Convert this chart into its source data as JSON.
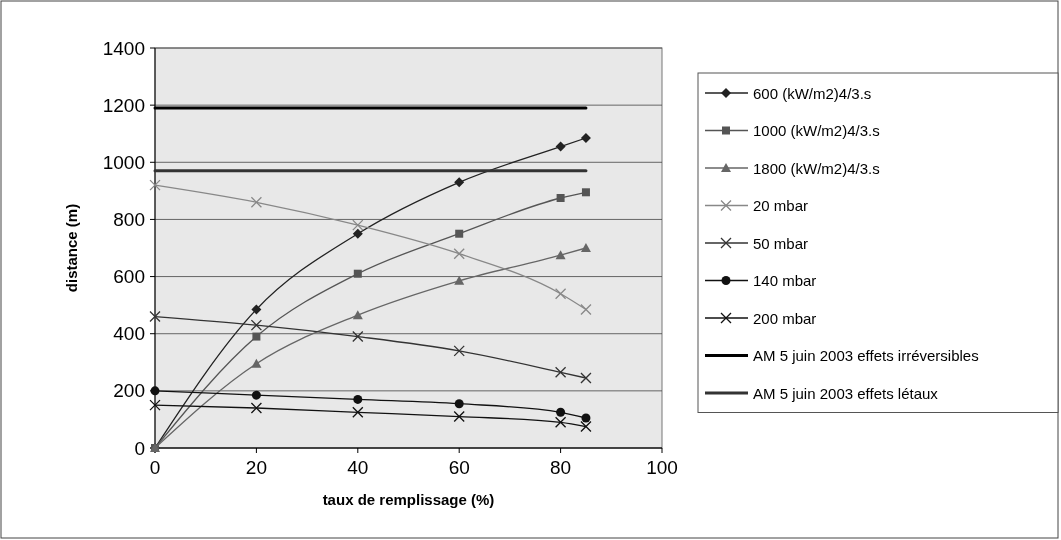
{
  "chart_data": {
    "type": "line",
    "xlabel": "taux de remplissage (%)",
    "ylabel": "distance (m)",
    "x": [
      0,
      20,
      40,
      60,
      80,
      85
    ],
    "xlim": [
      0,
      100
    ],
    "xticks": [
      0,
      20,
      40,
      60,
      80,
      100
    ],
    "ylim": [
      0,
      1400
    ],
    "yticks": [
      0,
      200,
      400,
      600,
      800,
      1000,
      1200,
      1400
    ],
    "grid": "y",
    "legend": "right",
    "line_style": "solid",
    "series": [
      {
        "name": "600 (kW/m2)4/3.s",
        "color": "#222222",
        "marker": "diamond",
        "values": [
          0,
          485,
          750,
          930,
          1055,
          1085
        ]
      },
      {
        "name": "1000 (kW/m2)4/3.s",
        "color": "#555555",
        "marker": "square",
        "values": [
          0,
          390,
          610,
          750,
          875,
          895
        ]
      },
      {
        "name": "1800 (kW/m2)4/3.s",
        "color": "#666666",
        "marker": "triangle",
        "values": [
          0,
          295,
          465,
          585,
          675,
          700
        ]
      },
      {
        "name": "20 mbar",
        "color": "#888888",
        "marker": "cross",
        "values": [
          920,
          860,
          780,
          680,
          540,
          485
        ]
      },
      {
        "name": "50 mbar",
        "color": "#333333",
        "marker": "cross",
        "values": [
          460,
          430,
          390,
          340,
          265,
          245
        ]
      },
      {
        "name": "140 mbar",
        "color": "#111111",
        "marker": "circle",
        "values": [
          200,
          185,
          170,
          155,
          125,
          105
        ]
      },
      {
        "name": "200 mbar",
        "color": "#111111",
        "marker": "cross",
        "values": [
          150,
          140,
          125,
          110,
          90,
          75
        ]
      },
      {
        "name": "AM 5 juin 2003 effets irréversibles",
        "color": "#000000",
        "marker": "none",
        "values": [
          1190,
          1190,
          1190,
          1190,
          1190,
          1190
        ]
      },
      {
        "name": "AM 5 juin 2003 effets létaux",
        "color": "#333333",
        "marker": "none",
        "values": [
          970,
          970,
          970,
          970,
          970,
          970
        ]
      }
    ]
  }
}
